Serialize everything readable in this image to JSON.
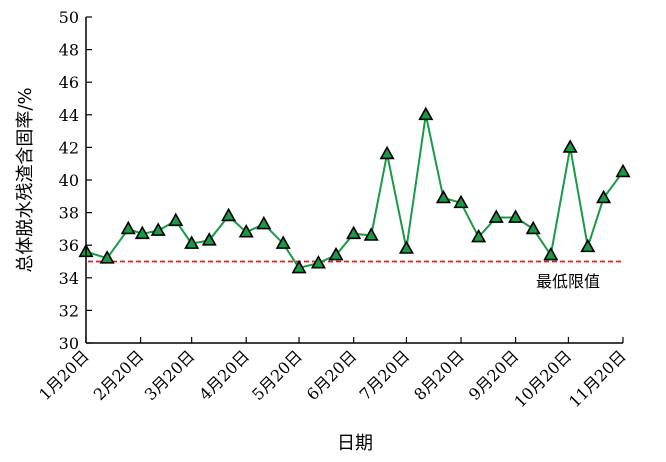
{
  "chart_data": {
    "type": "line",
    "title": "",
    "xlabel": "日期",
    "ylabel": "总体脱水残渣含固率/%",
    "ylim": [
      30,
      50
    ],
    "yticks": [
      30,
      32,
      34,
      36,
      38,
      40,
      42,
      44,
      46,
      48,
      50
    ],
    "xticks": [
      "1月20日",
      "2月20日",
      "3月20日",
      "4月20日",
      "5月20日",
      "6月20日",
      "7月20日",
      "8月20日",
      "9月20日",
      "10月20日",
      "11月20日"
    ],
    "x": [
      "2020-01-20",
      "2020-02-01",
      "2020-02-13",
      "2020-02-21",
      "2020-03-01",
      "2020-03-11",
      "2020-03-20",
      "2020-03-30",
      "2020-04-10",
      "2020-04-20",
      "2020-04-30",
      "2020-05-11",
      "2020-05-20",
      "2020-05-31",
      "2020-06-10",
      "2020-06-20",
      "2020-06-30",
      "2020-07-09",
      "2020-07-20",
      "2020-07-31",
      "2020-08-10",
      "2020-08-20",
      "2020-08-30",
      "2020-09-09",
      "2020-09-20",
      "2020-09-30",
      "2020-10-10",
      "2020-10-21",
      "2020-10-31",
      "2020-11-09",
      "2020-11-20"
    ],
    "series": [
      {
        "values": [
          35.6,
          35.2,
          37.0,
          36.7,
          36.9,
          37.5,
          36.1,
          36.3,
          37.8,
          36.8,
          37.3,
          36.1,
          34.6,
          34.9,
          35.4,
          36.7,
          36.6,
          41.6,
          35.8,
          44.0,
          38.9,
          38.6,
          36.5,
          37.7,
          37.7,
          37.0,
          35.4,
          42.0,
          35.9,
          38.9,
          40.5
        ],
        "color": "#1a9a46",
        "marker": "triangle"
      }
    ],
    "reference_line": {
      "value": 35,
      "label": "最低限值",
      "color": "#e02020",
      "style": "dashed"
    },
    "grid": false,
    "legend": "none"
  }
}
